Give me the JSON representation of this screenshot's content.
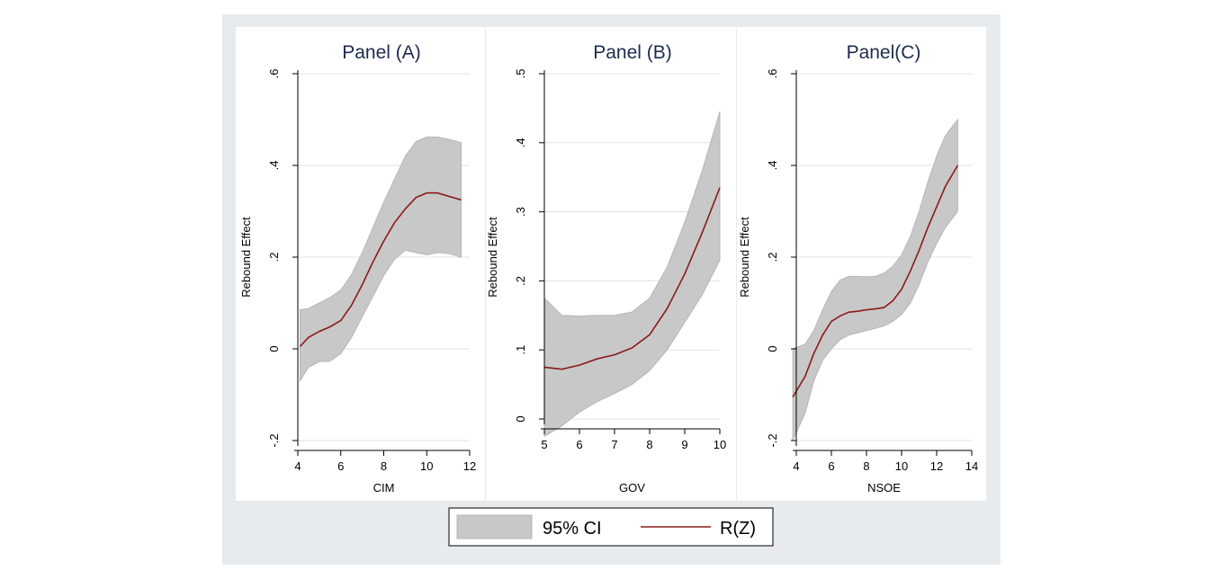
{
  "colors": {
    "outer_background": "#e7ebee",
    "plot_background": "#ffffff",
    "gridline": "#e2e2e2",
    "axis": "#000000",
    "ci_fill": "#c8c8c8",
    "ci_stroke": "#b6b6b6",
    "line": "#8b1a1a",
    "title_text": "#1e2a50"
  },
  "legend": {
    "ci_label": "95% CI",
    "line_label": "R(Z)",
    "placement": "bottom-center"
  },
  "chart_data": [
    {
      "type": "line",
      "title": "Panel (A)",
      "xlabel": "CIM",
      "ylabel": "Rebound Effect",
      "xlim": [
        4,
        12
      ],
      "ylim": [
        -0.2,
        0.6
      ],
      "x_ticks": [
        4,
        6,
        8,
        10,
        12
      ],
      "x_tick_labels": [
        "4",
        "6",
        "8",
        "10",
        "12"
      ],
      "y_ticks": [
        -0.2,
        0,
        0.2,
        0.4,
        0.6
      ],
      "y_tick_labels": [
        "-.2",
        "0",
        ".2",
        ".4",
        ".6"
      ],
      "grid": true,
      "series": [
        {
          "name": "R(Z)",
          "x": [
            4.1,
            4.5,
            5,
            5.5,
            6,
            6.5,
            7,
            7.5,
            8,
            8.5,
            9,
            9.5,
            10,
            10.5,
            11,
            11.6
          ],
          "values": [
            0.005,
            0.025,
            0.038,
            0.048,
            0.062,
            0.095,
            0.14,
            0.19,
            0.235,
            0.275,
            0.305,
            0.33,
            0.34,
            0.34,
            0.333,
            0.325
          ]
        },
        {
          "name": "95% CI upper",
          "x": [
            4.1,
            4.5,
            5,
            5.5,
            6,
            6.5,
            7,
            7.5,
            8,
            8.5,
            9,
            9.5,
            10,
            10.5,
            11,
            11.6
          ],
          "values": [
            0.085,
            0.088,
            0.1,
            0.112,
            0.128,
            0.162,
            0.21,
            0.265,
            0.32,
            0.37,
            0.42,
            0.452,
            0.462,
            0.462,
            0.457,
            0.45
          ]
        },
        {
          "name": "95% CI lower",
          "x": [
            4.1,
            4.5,
            5,
            5.5,
            6,
            6.5,
            7,
            7.5,
            8,
            8.5,
            9,
            9.5,
            10,
            10.5,
            11,
            11.6
          ],
          "values": [
            -0.07,
            -0.04,
            -0.028,
            -0.027,
            -0.01,
            0.025,
            0.07,
            0.115,
            0.16,
            0.195,
            0.215,
            0.21,
            0.205,
            0.21,
            0.208,
            0.2
          ]
        }
      ]
    },
    {
      "type": "line",
      "title": "Panel (B)",
      "xlabel": "GOV",
      "ylabel": "Rebound Effect",
      "xlim": [
        5,
        10
      ],
      "ylim": [
        0,
        0.5
      ],
      "x_ticks": [
        5,
        6,
        7,
        8,
        9,
        10
      ],
      "x_tick_labels": [
        "5",
        "6",
        "7",
        "8",
        "9",
        "10"
      ],
      "y_ticks": [
        0,
        0.1,
        0.2,
        0.3,
        0.4,
        0.5
      ],
      "y_tick_labels": [
        "0",
        ".1",
        ".2",
        ".3",
        ".4",
        ".5"
      ],
      "grid": true,
      "series": [
        {
          "name": "R(Z)",
          "x": [
            5,
            5.5,
            6,
            6.5,
            7,
            7.5,
            8,
            8.5,
            9,
            9.5,
            10
          ],
          "values": [
            0.075,
            0.072,
            0.078,
            0.087,
            0.093,
            0.103,
            0.122,
            0.16,
            0.21,
            0.27,
            0.335
          ]
        },
        {
          "name": "95% CI upper",
          "x": [
            5,
            5.5,
            6,
            6.5,
            7,
            7.5,
            8,
            8.5,
            9,
            9.5,
            10
          ],
          "values": [
            0.175,
            0.15,
            0.149,
            0.15,
            0.15,
            0.155,
            0.175,
            0.22,
            0.285,
            0.36,
            0.445
          ]
        },
        {
          "name": "95% CI lower",
          "x": [
            5,
            5.5,
            6,
            6.5,
            7,
            7.5,
            8,
            8.5,
            9,
            9.5,
            10
          ],
          "values": [
            -0.025,
            -0.01,
            0.01,
            0.025,
            0.037,
            0.05,
            0.07,
            0.1,
            0.14,
            0.18,
            0.23
          ]
        }
      ]
    },
    {
      "type": "line",
      "title": "Panel(C)",
      "xlabel": "NSOE",
      "ylabel": "Rebound Effect",
      "xlim": [
        4,
        14
      ],
      "ylim": [
        -0.2,
        0.6
      ],
      "x_ticks": [
        4,
        6,
        8,
        10,
        12,
        14
      ],
      "x_tick_labels": [
        "4",
        "6",
        "8",
        "10",
        "12",
        "14"
      ],
      "y_ticks": [
        -0.2,
        0,
        0.2,
        0.4,
        0.6
      ],
      "y_tick_labels": [
        "-.2",
        "0",
        ".2",
        ".4",
        ".6"
      ],
      "grid": true,
      "series": [
        {
          "name": "R(Z)",
          "x": [
            3.8,
            4.5,
            5,
            5.5,
            6,
            6.5,
            7,
            7.5,
            8,
            8.5,
            9,
            9.5,
            10,
            10.5,
            11,
            11.5,
            12,
            12.5,
            13.2
          ],
          "values": [
            -0.105,
            -0.06,
            -0.01,
            0.03,
            0.06,
            0.072,
            0.08,
            0.082,
            0.085,
            0.087,
            0.09,
            0.105,
            0.13,
            0.17,
            0.215,
            0.265,
            0.31,
            0.355,
            0.4
          ]
        },
        {
          "name": "95% CI upper",
          "x": [
            3.8,
            4.5,
            5,
            5.5,
            6,
            6.5,
            7,
            7.5,
            8,
            8.5,
            9,
            9.5,
            10,
            10.5,
            11,
            11.5,
            12,
            12.5,
            13.2
          ],
          "values": [
            0,
            0.01,
            0.04,
            0.085,
            0.125,
            0.15,
            0.158,
            0.158,
            0.157,
            0.158,
            0.165,
            0.18,
            0.205,
            0.245,
            0.3,
            0.365,
            0.42,
            0.465,
            0.5
          ]
        },
        {
          "name": "95% CI lower",
          "x": [
            3.8,
            4.5,
            5,
            5.5,
            6,
            6.5,
            7,
            7.5,
            8,
            8.5,
            9,
            9.5,
            10,
            10.5,
            11,
            11.5,
            12,
            12.5,
            13.2
          ],
          "values": [
            -0.2,
            -0.14,
            -0.07,
            -0.025,
            0,
            0.02,
            0.03,
            0.035,
            0.04,
            0.045,
            0.05,
            0.06,
            0.075,
            0.1,
            0.14,
            0.19,
            0.23,
            0.265,
            0.3
          ]
        }
      ]
    }
  ]
}
